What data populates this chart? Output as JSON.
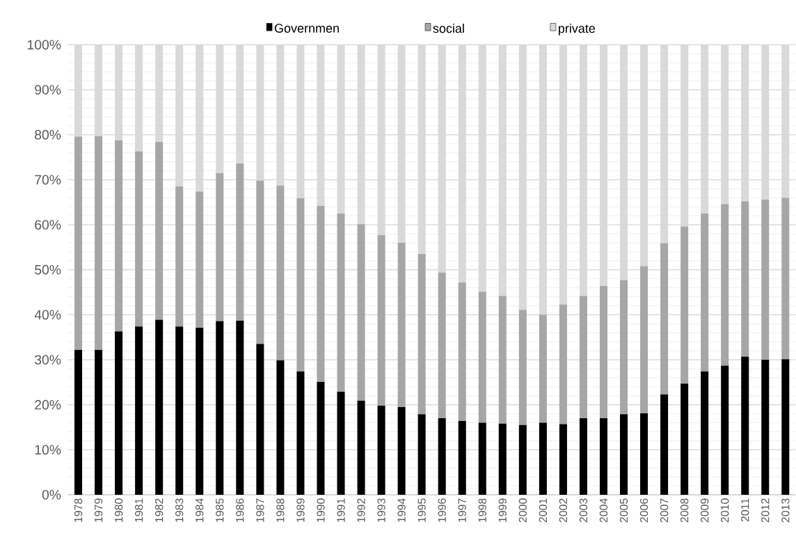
{
  "chart_data": {
    "type": "bar",
    "stacked": true,
    "categories": [
      "1978",
      "1979",
      "1980",
      "1981",
      "1982",
      "1983",
      "1984",
      "1985",
      "1986",
      "1987",
      "1988",
      "1989",
      "1990",
      "1991",
      "1992",
      "1993",
      "1994",
      "1995",
      "1996",
      "1997",
      "1998",
      "1999",
      "2000",
      "2001",
      "2002",
      "2003",
      "2004",
      "2005",
      "2006",
      "2007",
      "2008",
      "2009",
      "2010",
      "2011",
      "2012",
      "2013"
    ],
    "series": [
      {
        "name": "Governmen",
        "color": "#000000",
        "values": [
          32.2,
          32.2,
          36.3,
          37.4,
          38.9,
          37.4,
          37.1,
          38.6,
          38.7,
          33.5,
          29.9,
          27.4,
          25.1,
          22.9,
          20.9,
          19.8,
          19.5,
          17.9,
          17.0,
          16.4,
          16.0,
          15.8,
          15.5,
          16.0,
          15.7,
          17.0,
          17.0,
          17.9,
          18.1,
          22.3,
          24.7,
          27.4,
          28.7,
          30.7,
          30.0,
          30.1
        ]
      },
      {
        "name": "social",
        "color": "#a6a6a6",
        "values": [
          47.4,
          47.5,
          42.5,
          38.9,
          39.5,
          31.1,
          30.3,
          32.9,
          34.9,
          36.3,
          38.8,
          38.5,
          39.1,
          39.6,
          39.2,
          37.9,
          36.5,
          35.6,
          32.4,
          30.8,
          29.1,
          28.4,
          25.6,
          24.0,
          26.6,
          27.2,
          29.4,
          29.8,
          32.7,
          33.6,
          34.9,
          35.1,
          35.9,
          34.5,
          35.6,
          35.9
        ]
      },
      {
        "name": "private",
        "color": "#d9d9d9",
        "values": [
          20.4,
          20.3,
          21.2,
          23.7,
          21.6,
          31.5,
          32.6,
          28.5,
          26.4,
          30.2,
          31.3,
          34.1,
          35.8,
          37.5,
          39.9,
          42.3,
          44.0,
          46.5,
          50.6,
          52.8,
          54.9,
          55.8,
          58.9,
          60.0,
          57.7,
          55.8,
          53.6,
          52.3,
          49.2,
          44.1,
          40.4,
          37.5,
          35.4,
          34.8,
          34.4,
          34.0
        ]
      }
    ],
    "ylim": [
      0,
      100
    ],
    "yticks": [
      {
        "value": 0,
        "label": "0%"
      },
      {
        "value": 10,
        "label": "10%"
      },
      {
        "value": 20,
        "label": "20%"
      },
      {
        "value": 30,
        "label": "30%"
      },
      {
        "value": 40,
        "label": "40%"
      },
      {
        "value": 50,
        "label": "50%"
      },
      {
        "value": 60,
        "label": "60%"
      },
      {
        "value": 70,
        "label": "70%"
      },
      {
        "value": 80,
        "label": "80%"
      },
      {
        "value": 90,
        "label": "90%"
      },
      {
        "value": 100,
        "label": "100%"
      }
    ],
    "grid": "y",
    "legend": "top"
  }
}
